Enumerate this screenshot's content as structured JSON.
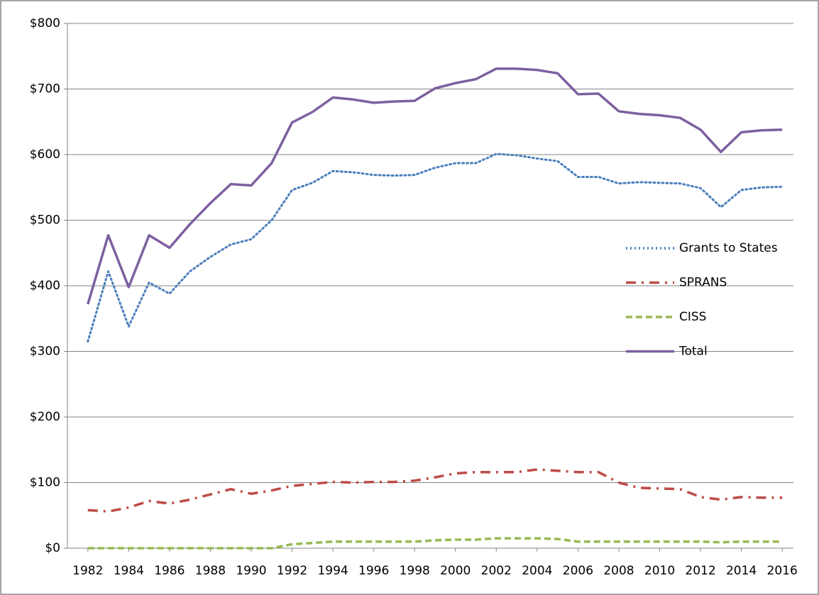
{
  "chart_data": {
    "type": "line",
    "x": [
      1982,
      1983,
      1984,
      1985,
      1986,
      1987,
      1988,
      1989,
      1990,
      1991,
      1992,
      1993,
      1994,
      1995,
      1996,
      1997,
      1998,
      1999,
      2000,
      2001,
      2002,
      2003,
      2004,
      2005,
      2006,
      2007,
      2008,
      2009,
      2010,
      2011,
      2012,
      2013,
      2014,
      2015,
      2016
    ],
    "series": [
      {
        "name": "Grants to States",
        "color": "#4a7ebb",
        "line_style": "dotted",
        "values": [
          315,
          422,
          338,
          405,
          388,
          422,
          444,
          463,
          471,
          500,
          546,
          557,
          575,
          573,
          569,
          568,
          569,
          580,
          587,
          587,
          601,
          599,
          594,
          590,
          566,
          566,
          556,
          558,
          557,
          556,
          549,
          520,
          546,
          550,
          551
        ]
      },
      {
        "name": "SPRANS",
        "color": "#be4b48",
        "line_style": "dashdot",
        "values": [
          58,
          56,
          62,
          72,
          68,
          74,
          82,
          90,
          83,
          88,
          95,
          98,
          101,
          100,
          101,
          101,
          103,
          108,
          114,
          116,
          116,
          116,
          120,
          118,
          116,
          116,
          100,
          92,
          91,
          90,
          78,
          74,
          78,
          77,
          77
        ]
      },
      {
        "name": "CISS",
        "color": "#98b954",
        "line_style": "dashed",
        "values": [
          0,
          0,
          0,
          0,
          0,
          0,
          0,
          0,
          0,
          0,
          6,
          8,
          10,
          10,
          10,
          10,
          10,
          12,
          13,
          13,
          15,
          15,
          15,
          14,
          10,
          10,
          10,
          10,
          10,
          10,
          10,
          9,
          10,
          10,
          10
        ]
      },
      {
        "name": "Total",
        "color": "#7d60a0",
        "line_style": "solid",
        "values": [
          372,
          477,
          398,
          477,
          458,
          494,
          526,
          555,
          553,
          587,
          649,
          665,
          687,
          684,
          679,
          681,
          682,
          701,
          709,
          715,
          731,
          731,
          729,
          724,
          692,
          693,
          666,
          662,
          660,
          656,
          638,
          604,
          634,
          637,
          638
        ]
      }
    ],
    "xlim": [
      1981,
      2016.55
    ],
    "xticks": [
      1982,
      1984,
      1986,
      1988,
      1990,
      1992,
      1994,
      1996,
      1998,
      2000,
      2002,
      2004,
      2006,
      2008,
      2010,
      2012,
      2014,
      2016
    ],
    "ylim": [
      0,
      800
    ],
    "yticks": [
      {
        "value": 0,
        "label": "$0"
      },
      {
        "value": 100,
        "label": "$100"
      },
      {
        "value": 200,
        "label": "$200"
      },
      {
        "value": 300,
        "label": "$300"
      },
      {
        "value": 400,
        "label": "$400"
      },
      {
        "value": 500,
        "label": "$500"
      },
      {
        "value": 600,
        "label": "$600"
      },
      {
        "value": 700,
        "label": "$700"
      },
      {
        "value": 800,
        "label": "$800"
      }
    ],
    "grid": true,
    "legend": "right"
  }
}
